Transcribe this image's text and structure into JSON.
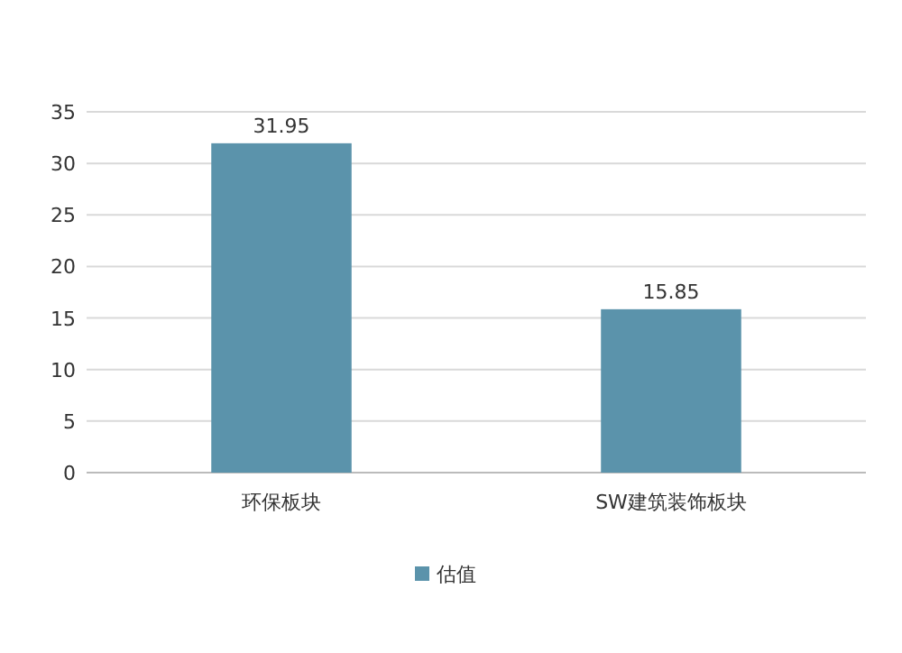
{
  "chart_data": {
    "type": "bar",
    "categories": [
      "环保板块",
      "SW建筑装饰板块"
    ],
    "series": [
      {
        "name": "估值",
        "color": "#5b93ab",
        "values": [
          31.95,
          15.85
        ]
      }
    ],
    "ylim": [
      0,
      35
    ],
    "yticks": [
      0,
      5,
      10,
      15,
      20,
      25,
      30,
      35
    ],
    "grid": "y",
    "data_labels": true,
    "legend": "bottom"
  }
}
